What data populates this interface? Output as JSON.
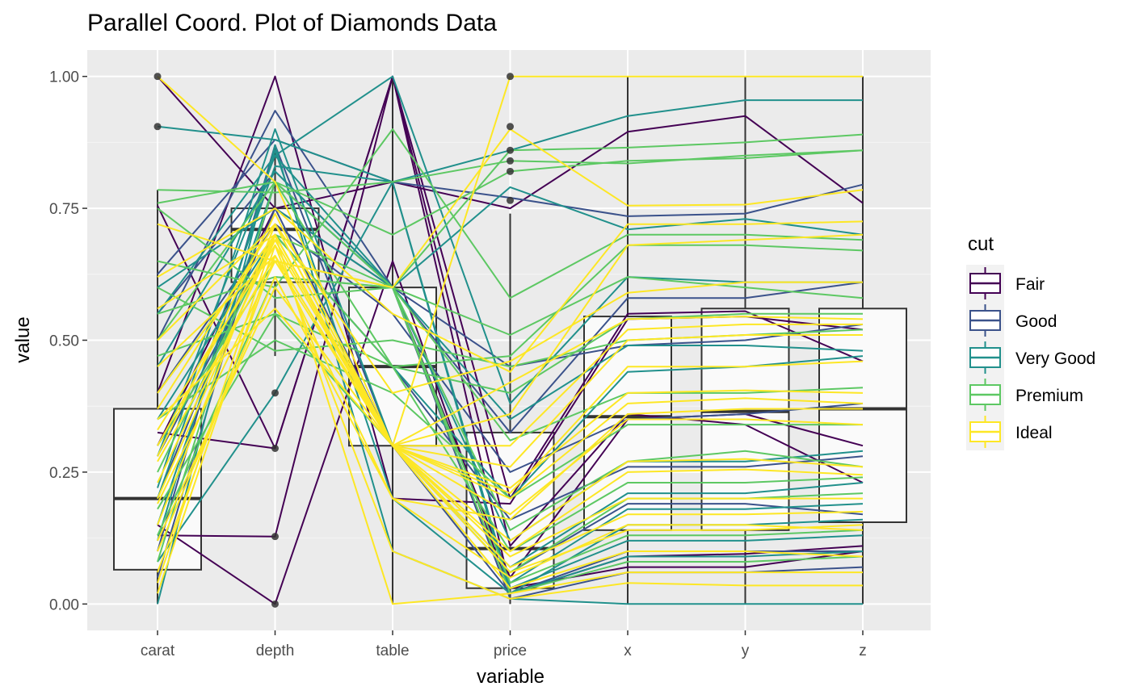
{
  "chart_data": {
    "type": "line",
    "subtype": "parallel-coordinates-with-boxplots",
    "title": "Parallel Coord. Plot of Diamonds Data",
    "xlabel": "variable",
    "ylabel": "value",
    "categories": [
      "carat",
      "depth",
      "table",
      "price",
      "x",
      "y",
      "z"
    ],
    "ylim": [
      -0.05,
      1.05
    ],
    "y_ticks": [
      "0.00",
      "0.25",
      "0.50",
      "0.75",
      "1.00"
    ],
    "grid": true,
    "legend": {
      "title": "cut",
      "placement": "right",
      "entries": [
        "Fair",
        "Good",
        "Very Good",
        "Premium",
        "Ideal"
      ]
    },
    "colors": {
      "Fair": "#440154",
      "Good": "#3b528b",
      "Very Good": "#21908c",
      "Premium": "#5dc863",
      "Ideal": "#fde725",
      "panel": "#ebebeb",
      "box_fill": "#fafafa",
      "box_line": "#333333"
    },
    "boxplots": [
      {
        "variable": "carat",
        "whisker_low": 0.0,
        "q1": 0.065,
        "median": 0.2,
        "q3": 0.37,
        "whisker_high": 0.785,
        "outliers": [
          0.905,
          1.0
        ]
      },
      {
        "variable": "depth",
        "whisker_low": 0.47,
        "q1": 0.61,
        "median": 0.71,
        "q3": 0.75,
        "whisker_high": 0.87,
        "outliers": [
          0.0,
          0.128,
          0.295,
          0.4
        ]
      },
      {
        "variable": "table",
        "whisker_low": 0.0,
        "q1": 0.3,
        "median": 0.45,
        "q3": 0.6,
        "whisker_high": 1.0,
        "outliers": []
      },
      {
        "variable": "price",
        "whisker_low": 0.0,
        "q1": 0.03,
        "median": 0.105,
        "q3": 0.325,
        "whisker_high": 0.74,
        "outliers": [
          0.765,
          0.82,
          0.84,
          0.86,
          0.905,
          1.0
        ]
      },
      {
        "variable": "x",
        "whisker_low": 0.0,
        "q1": 0.14,
        "median": 0.355,
        "q3": 0.545,
        "whisker_high": 1.0,
        "outliers": []
      },
      {
        "variable": "y",
        "whisker_low": 0.0,
        "q1": 0.14,
        "median": 0.365,
        "q3": 0.56,
        "whisker_high": 1.0,
        "outliers": []
      },
      {
        "variable": "z",
        "whisker_low": 0.0,
        "q1": 0.155,
        "median": 0.37,
        "q3": 0.56,
        "whisker_high": 1.0,
        "outliers": []
      }
    ],
    "series": [
      {
        "cut": "Fair",
        "values": [
          1.0,
          0.75,
          0.8,
          0.75,
          0.895,
          0.925,
          0.76
        ]
      },
      {
        "cut": "Fair",
        "values": [
          0.755,
          0.295,
          1.0,
          0.2,
          0.55,
          0.555,
          0.46
        ]
      },
      {
        "cut": "Fair",
        "values": [
          0.325,
          0.295,
          1.0,
          0.11,
          0.36,
          0.34,
          0.23
        ]
      },
      {
        "cut": "Fair",
        "values": [
          0.15,
          0.0,
          0.65,
          0.02,
          0.09,
          0.095,
          0.11
        ]
      },
      {
        "cut": "Fair",
        "values": [
          0.13,
          0.128,
          1.0,
          0.03,
          0.07,
          0.07,
          0.1
        ]
      },
      {
        "cut": "Fair",
        "values": [
          0.4,
          1.0,
          0.2,
          0.19,
          0.54,
          0.545,
          0.52
        ]
      },
      {
        "cut": "Fair",
        "values": [
          0.3,
          0.75,
          0.6,
          0.05,
          0.35,
          0.36,
          0.3
        ]
      },
      {
        "cut": "Good",
        "values": [
          0.625,
          0.88,
          0.8,
          0.77,
          0.735,
          0.74,
          0.795
        ]
      },
      {
        "cut": "Good",
        "values": [
          0.5,
          0.935,
          0.6,
          0.325,
          0.58,
          0.58,
          0.61
        ]
      },
      {
        "cut": "Good",
        "values": [
          0.28,
          0.7,
          0.45,
          0.16,
          0.26,
          0.26,
          0.28
        ]
      },
      {
        "cut": "Good",
        "values": [
          0.2,
          0.75,
          0.3,
          0.06,
          0.19,
          0.19,
          0.17
        ]
      },
      {
        "cut": "Good",
        "values": [
          0.1,
          0.87,
          0.3,
          0.02,
          0.1,
          0.1,
          0.1
        ]
      },
      {
        "cut": "Good",
        "values": [
          0.4,
          0.72,
          0.55,
          0.25,
          0.35,
          0.36,
          0.38
        ]
      },
      {
        "cut": "Good",
        "values": [
          0.05,
          0.8,
          0.6,
          0.01,
          0.06,
          0.06,
          0.07
        ]
      },
      {
        "cut": "Good",
        "values": [
          0.55,
          0.82,
          0.6,
          0.45,
          0.49,
          0.5,
          0.53
        ]
      },
      {
        "cut": "Very Good",
        "values": [
          0.905,
          0.88,
          0.8,
          0.86,
          0.925,
          0.955,
          0.955
        ]
      },
      {
        "cut": "Very Good",
        "values": [
          0.55,
          0.85,
          1.0,
          0.38,
          0.62,
          0.61,
          0.61
        ]
      },
      {
        "cut": "Very Good",
        "values": [
          0.45,
          0.82,
          0.6,
          0.35,
          0.49,
          0.49,
          0.48
        ]
      },
      {
        "cut": "Very Good",
        "values": [
          0.35,
          0.7,
          0.45,
          0.2,
          0.44,
          0.45,
          0.47
        ]
      },
      {
        "cut": "Very Good",
        "values": [
          0.28,
          0.85,
          0.6,
          0.12,
          0.27,
          0.27,
          0.29
        ]
      },
      {
        "cut": "Very Good",
        "values": [
          0.22,
          0.9,
          0.3,
          0.07,
          0.21,
          0.21,
          0.23
        ]
      },
      {
        "cut": "Very Good",
        "values": [
          0.15,
          0.8,
          0.6,
          0.04,
          0.18,
          0.18,
          0.19
        ]
      },
      {
        "cut": "Very Good",
        "values": [
          0.08,
          0.4,
          0.8,
          0.02,
          0.09,
          0.09,
          0.1
        ]
      },
      {
        "cut": "Very Good",
        "values": [
          0.0,
          0.87,
          0.1,
          0.01,
          0.0,
          0.0,
          0.0
        ]
      },
      {
        "cut": "Very Good",
        "values": [
          0.6,
          0.75,
          0.6,
          0.79,
          0.71,
          0.73,
          0.7
        ]
      },
      {
        "cut": "Very Good",
        "values": [
          0.2,
          0.83,
          0.8,
          0.03,
          0.12,
          0.12,
          0.13
        ]
      },
      {
        "cut": "Very Good",
        "values": [
          0.12,
          0.86,
          0.2,
          0.02,
          0.15,
          0.15,
          0.16
        ]
      },
      {
        "cut": "Premium",
        "values": [
          0.785,
          0.78,
          0.8,
          0.84,
          0.835,
          0.85,
          0.86
        ]
      },
      {
        "cut": "Premium",
        "values": [
          0.76,
          0.8,
          0.7,
          0.82,
          0.84,
          0.845,
          0.86
        ]
      },
      {
        "cut": "Premium",
        "values": [
          0.75,
          0.58,
          0.6,
          0.86,
          0.865,
          0.875,
          0.89
        ]
      },
      {
        "cut": "Premium",
        "values": [
          0.65,
          0.6,
          0.9,
          0.58,
          0.7,
          0.7,
          0.69
        ]
      },
      {
        "cut": "Premium",
        "values": [
          0.55,
          0.62,
          0.6,
          0.51,
          0.62,
          0.6,
          0.58
        ]
      },
      {
        "cut": "Premium",
        "values": [
          0.47,
          0.55,
          0.45,
          0.4,
          0.54,
          0.55,
          0.55
        ]
      },
      {
        "cut": "Premium",
        "values": [
          0.4,
          0.7,
          0.6,
          0.31,
          0.4,
          0.4,
          0.41
        ]
      },
      {
        "cut": "Premium",
        "values": [
          0.35,
          0.5,
          0.4,
          0.2,
          0.34,
          0.34,
          0.34
        ]
      },
      {
        "cut": "Premium",
        "values": [
          0.3,
          0.65,
          0.6,
          0.14,
          0.27,
          0.29,
          0.26
        ]
      },
      {
        "cut": "Premium",
        "values": [
          0.25,
          0.7,
          0.45,
          0.1,
          0.23,
          0.23,
          0.24
        ]
      },
      {
        "cut": "Premium",
        "values": [
          0.18,
          0.55,
          0.3,
          0.06,
          0.2,
          0.2,
          0.21
        ]
      },
      {
        "cut": "Premium",
        "values": [
          0.13,
          0.62,
          0.6,
          0.04,
          0.13,
          0.13,
          0.14
        ]
      },
      {
        "cut": "Premium",
        "values": [
          0.08,
          0.8,
          0.6,
          0.02,
          0.08,
          0.08,
          0.09
        ]
      },
      {
        "cut": "Premium",
        "values": [
          0.5,
          0.8,
          0.45,
          0.47,
          0.68,
          0.68,
          0.67
        ]
      },
      {
        "cut": "Premium",
        "values": [
          0.6,
          0.48,
          0.5,
          0.45,
          0.5,
          0.51,
          0.52
        ]
      },
      {
        "cut": "Ideal",
        "values": [
          1.0,
          0.8,
          0.3,
          1.0,
          1.0,
          1.0,
          1.0
        ]
      },
      {
        "cut": "Ideal",
        "values": [
          0.72,
          0.65,
          0.6,
          0.9,
          0.755,
          0.757,
          0.785
        ]
      },
      {
        "cut": "Ideal",
        "values": [
          0.62,
          0.75,
          0.55,
          0.44,
          0.72,
          0.72,
          0.725
        ]
      },
      {
        "cut": "Ideal",
        "values": [
          0.56,
          0.7,
          0.3,
          0.36,
          0.68,
          0.69,
          0.7
        ]
      },
      {
        "cut": "Ideal",
        "values": [
          0.5,
          0.72,
          0.4,
          0.46,
          0.59,
          0.61,
          0.61
        ]
      },
      {
        "cut": "Ideal",
        "values": [
          0.45,
          0.66,
          0.3,
          0.42,
          0.54,
          0.545,
          0.54
        ]
      },
      {
        "cut": "Ideal",
        "values": [
          0.4,
          0.7,
          0.3,
          0.3,
          0.52,
          0.53,
          0.53
        ]
      },
      {
        "cut": "Ideal",
        "values": [
          0.37,
          0.72,
          0.3,
          0.26,
          0.5,
          0.51,
          0.51
        ]
      },
      {
        "cut": "Ideal",
        "values": [
          0.33,
          0.68,
          0.3,
          0.22,
          0.4,
          0.405,
          0.4
        ]
      },
      {
        "cut": "Ideal",
        "values": [
          0.3,
          0.7,
          0.3,
          0.2,
          0.38,
          0.39,
          0.38
        ]
      },
      {
        "cut": "Ideal",
        "values": [
          0.27,
          0.66,
          0.2,
          0.16,
          0.36,
          0.37,
          0.37
        ]
      },
      {
        "cut": "Ideal",
        "values": [
          0.23,
          0.69,
          0.3,
          0.12,
          0.27,
          0.275,
          0.26
        ]
      },
      {
        "cut": "Ideal",
        "values": [
          0.2,
          0.7,
          0.3,
          0.1,
          0.25,
          0.255,
          0.245
        ]
      },
      {
        "cut": "Ideal",
        "values": [
          0.15,
          0.72,
          0.3,
          0.07,
          0.17,
          0.17,
          0.175
        ]
      },
      {
        "cut": "Ideal",
        "values": [
          0.1,
          0.62,
          0.2,
          0.05,
          0.15,
          0.15,
          0.14
        ]
      },
      {
        "cut": "Ideal",
        "values": [
          0.06,
          0.66,
          0.3,
          0.03,
          0.1,
          0.1,
          0.09
        ]
      },
      {
        "cut": "Ideal",
        "values": [
          0.04,
          0.7,
          0.0,
          0.02,
          0.06,
          0.06,
          0.06
        ]
      },
      {
        "cut": "Ideal",
        "values": [
          0.02,
          0.68,
          0.1,
          0.01,
          0.04,
          0.035,
          0.035
        ]
      },
      {
        "cut": "Ideal",
        "values": [
          0.35,
          0.56,
          0.3,
          0.21,
          0.45,
          0.45,
          0.46
        ]
      },
      {
        "cut": "Ideal",
        "values": [
          0.28,
          0.74,
          0.3,
          0.17,
          0.35,
          0.35,
          0.34
        ]
      },
      {
        "cut": "Ideal",
        "values": [
          0.19,
          0.65,
          0.3,
          0.09,
          0.2,
          0.2,
          0.2
        ]
      },
      {
        "cut": "Ideal",
        "values": [
          0.12,
          0.6,
          0.3,
          0.06,
          0.14,
          0.14,
          0.15
        ]
      }
    ]
  }
}
